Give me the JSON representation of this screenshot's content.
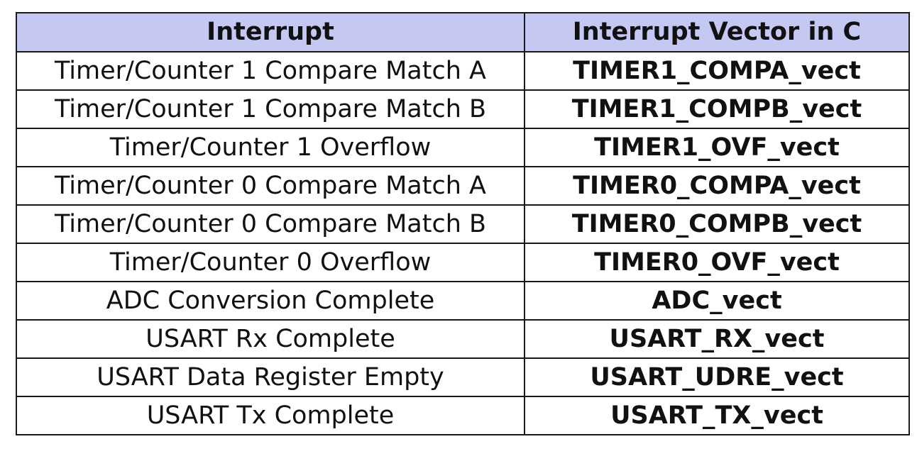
{
  "colors": {
    "header_background": "#c6c8f4",
    "border": "#1a1a1a",
    "text": "#111111"
  },
  "table": {
    "headers": [
      "Interrupt",
      "Interrupt Vector in C"
    ],
    "rows": [
      [
        "Timer/Counter 1 Compare Match A",
        "TIMER1_COMPA_vect"
      ],
      [
        "Timer/Counter 1 Compare Match B",
        "TIMER1_COMPB_vect"
      ],
      [
        "Timer/Counter 1 Overflow",
        "TIMER1_OVF_vect"
      ],
      [
        "Timer/Counter 0 Compare Match A",
        "TIMER0_COMPA_vect"
      ],
      [
        "Timer/Counter 0 Compare Match B",
        "TIMER0_COMPB_vect"
      ],
      [
        "Timer/Counter 0 Overflow",
        "TIMER0_OVF_vect"
      ],
      [
        "ADC Conversion Complete",
        "ADC_vect"
      ],
      [
        "USART Rx Complete",
        "USART_RX_vect"
      ],
      [
        "USART Data Register Empty",
        "USART_UDRE_vect"
      ],
      [
        "USART Tx Complete",
        "USART_TX_vect"
      ]
    ]
  }
}
